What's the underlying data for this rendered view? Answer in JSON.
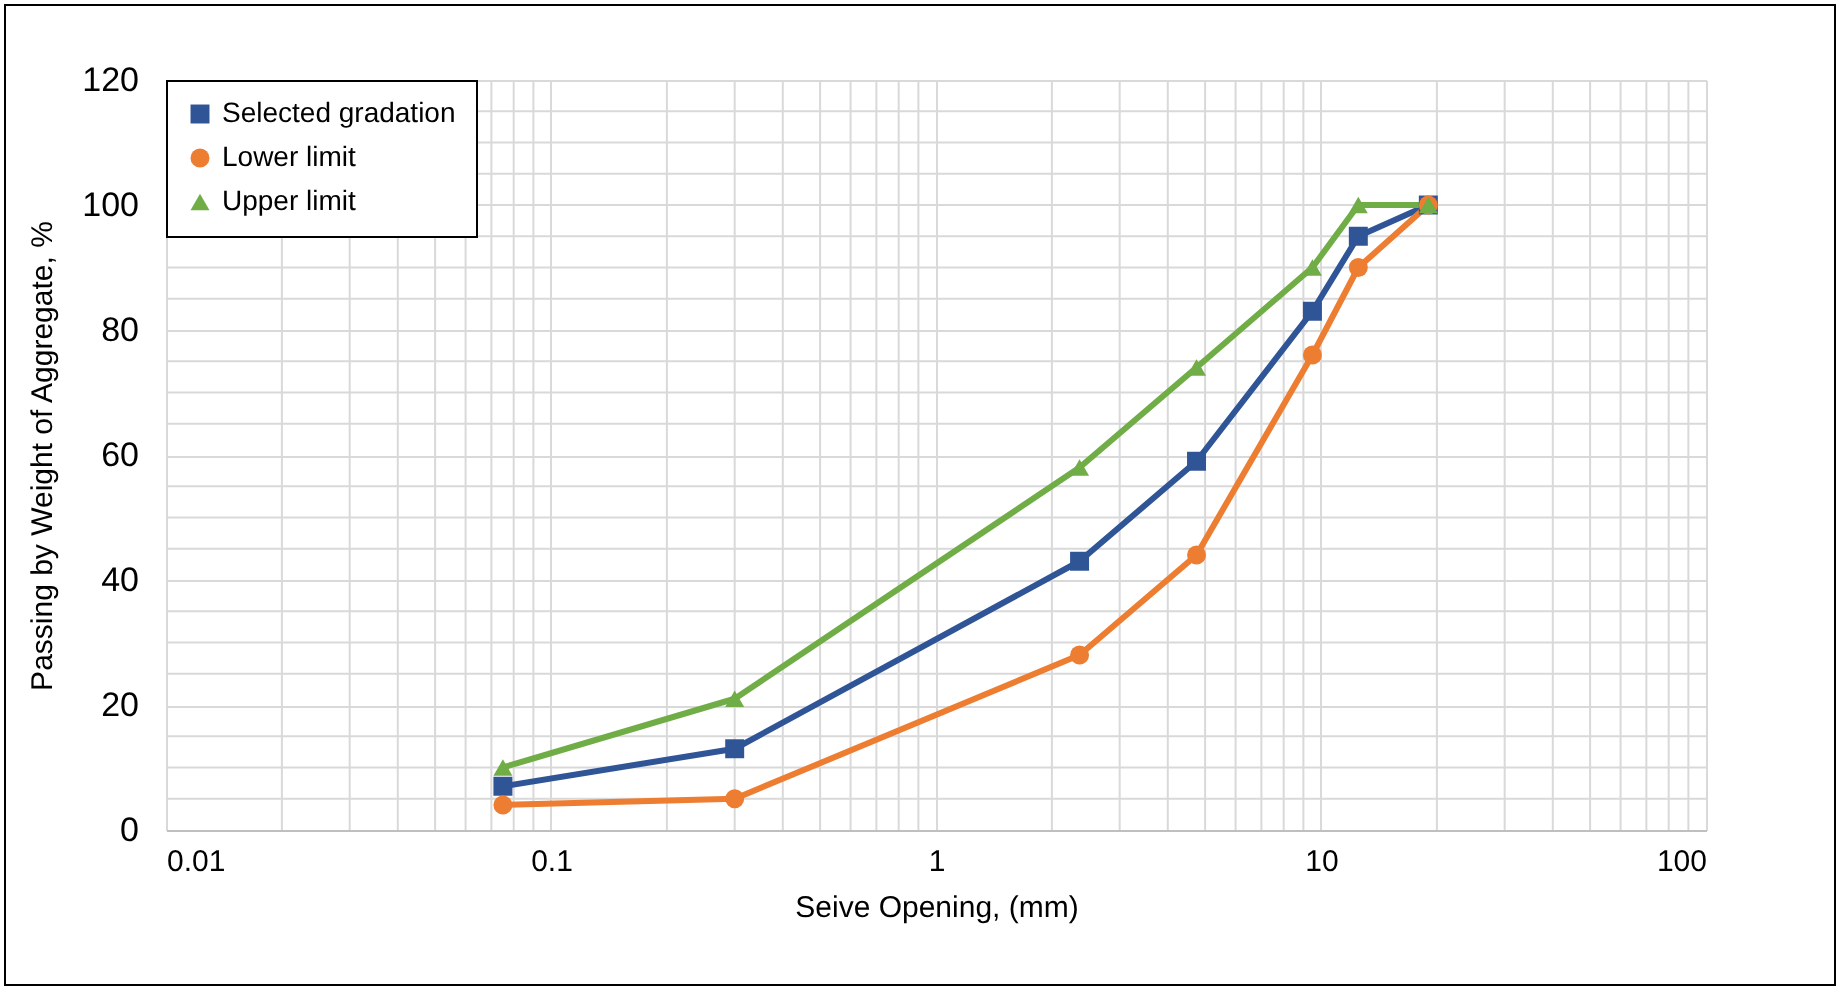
{
  "chart_data": {
    "type": "line",
    "xlabel": "Seive Opening, (mm)",
    "ylabel": "Passing by Weight of Aggregate, %",
    "x": [
      0.075,
      0.3,
      2.36,
      4.75,
      9.5,
      12.5,
      19
    ],
    "series": [
      {
        "name": "Selected gradation",
        "color": "#2f5597",
        "marker": "square",
        "values": [
          7,
          13,
          43,
          59,
          83,
          95,
          100
        ]
      },
      {
        "name": "Lower limit",
        "color": "#ed7d31",
        "marker": "circle",
        "values": [
          4,
          5,
          28,
          44,
          76,
          90,
          100
        ]
      },
      {
        "name": "Upper limit",
        "color": "#70ad47",
        "marker": "triangle",
        "values": [
          10,
          21,
          58,
          74,
          90,
          100,
          100
        ]
      }
    ],
    "log": "x",
    "xlim": [
      0.01,
      100
    ],
    "xticks": [
      0.01,
      0.1,
      1,
      10,
      100
    ],
    "ylim": [
      0,
      120
    ],
    "yticks": [
      0,
      20,
      40,
      60,
      80,
      100,
      120
    ],
    "grid": true,
    "legend": "top left",
    "line_style": "solid"
  }
}
